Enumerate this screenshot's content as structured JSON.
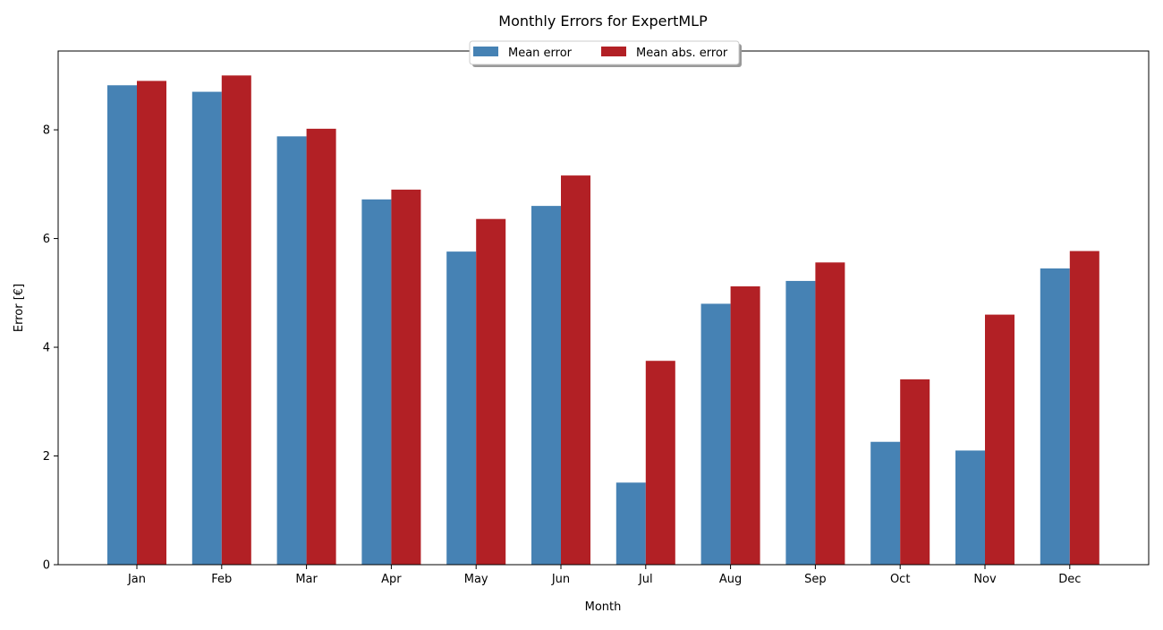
{
  "chart_data": {
    "type": "bar",
    "title": "Monthly Errors for ExpertMLP",
    "xlabel": "Month",
    "ylabel": "Error [€]",
    "categories": [
      "Jan",
      "Feb",
      "Mar",
      "Apr",
      "May",
      "Jun",
      "Jul",
      "Aug",
      "Sep",
      "Oct",
      "Nov",
      "Dec"
    ],
    "series": [
      {
        "name": "Mean error",
        "color": "#4682b4",
        "values": [
          8.82,
          8.7,
          7.88,
          6.72,
          5.76,
          6.6,
          1.51,
          4.8,
          5.22,
          2.26,
          2.1,
          5.45
        ]
      },
      {
        "name": "Mean abs. error",
        "color": "#b22025",
        "values": [
          8.9,
          9.0,
          8.02,
          6.9,
          6.36,
          7.16,
          3.75,
          5.12,
          5.56,
          3.41,
          4.6,
          5.77
        ]
      }
    ],
    "ylim": [
      0,
      9.45
    ],
    "yticks": [
      0,
      2,
      4,
      6,
      8
    ],
    "grid": false,
    "legend_position": "top-center"
  }
}
